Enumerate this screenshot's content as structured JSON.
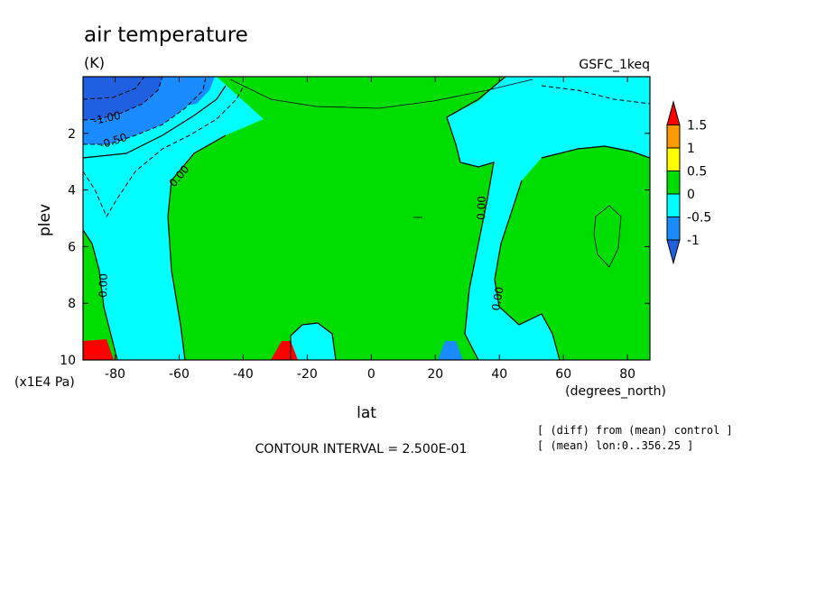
{
  "chart_data": {
    "type": "contour",
    "title": "air temperature",
    "units": "(K)",
    "experiment": "GSFC_1keq",
    "xlabel": "lat",
    "xunits": "(degrees_north)",
    "ylabel": "plev",
    "yunits": "(x1E4 Pa)",
    "xlim": [
      -90,
      87
    ],
    "ylim": [
      10,
      0
    ],
    "x_ticks": [
      -80,
      -60,
      -40,
      -20,
      0,
      20,
      40,
      60,
      80
    ],
    "y_ticks": [
      2,
      4,
      6,
      8,
      10
    ],
    "contour_interval_text": "CONTOUR INTERVAL = 2.500E-01",
    "notes": [
      "[ (diff) from (mean) control ]",
      "[ (mean) lon:0..356.25 ]"
    ],
    "contour_labels": [
      "-1.00",
      "-0.50",
      "0.00",
      "0.00",
      "0.00",
      "0.00",
      "0.00"
    ],
    "colorbar": {
      "labels": [
        "1.5",
        "1",
        "0.5",
        "0",
        "-0.5",
        "-1"
      ],
      "levels": [
        1.5,
        1.0,
        0.5,
        0.0,
        -0.5,
        -1.0
      ],
      "colors": [
        "#ff0000",
        "#ff9900",
        "#ffff00",
        "#00dd00",
        "#00ffff",
        "#1a8cff",
        "#1f5fe0"
      ]
    },
    "field_colors": {
      "above_1": "#ff0000",
      "0_to_0.5": "#00dd00",
      "-0.5_to_0": "#00ffff",
      "-1_to_-0.5": "#1a8cff",
      "below_-1": "#1f5fe0"
    }
  }
}
